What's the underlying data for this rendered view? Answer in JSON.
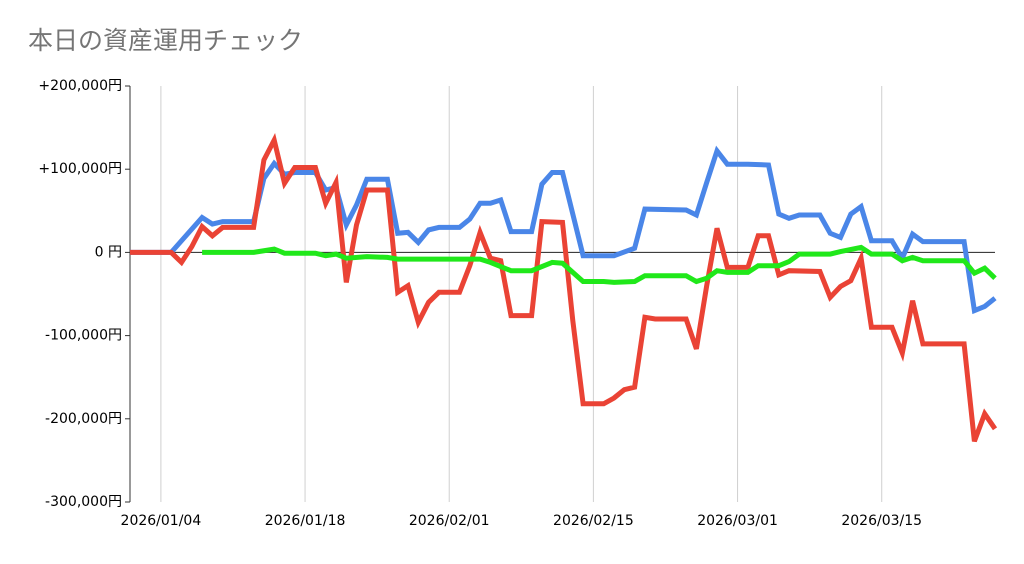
{
  "chart_data": {
    "type": "line",
    "title": "本日の資産運用チェック",
    "xlim": [
      "2026/01/01",
      "2026/03/26"
    ],
    "xticks": [
      "2026/01/04",
      "2026/01/18",
      "2026/02/01",
      "2026/02/15",
      "2026/03/01",
      "2026/03/15"
    ],
    "ylim": [
      -300000,
      200000
    ],
    "yticks": [
      {
        "value": 200000,
        "label": "+200,000円"
      },
      {
        "value": 100000,
        "label": "+100,000円"
      },
      {
        "value": 0,
        "label": "0 円"
      },
      {
        "value": -100000,
        "label": "-100,000円"
      },
      {
        "value": -200000,
        "label": "-200,000円"
      },
      {
        "value": -300000,
        "label": "-300,000円"
      }
    ],
    "grid": "x",
    "series": [
      {
        "color": "#4a86e8",
        "x": [
          "2026/01/01",
          "2026/01/05",
          "2026/01/08",
          "2026/01/09",
          "2026/01/10",
          "2026/01/13",
          "2026/01/14",
          "2026/01/15",
          "2026/01/16",
          "2026/01/17",
          "2026/01/19",
          "2026/01/20",
          "2026/01/21",
          "2026/01/22",
          "2026/01/23",
          "2026/01/24",
          "2026/01/26",
          "2026/01/27",
          "2026/01/28",
          "2026/01/29",
          "2026/01/30",
          "2026/01/31",
          "2026/02/02",
          "2026/02/03",
          "2026/02/04",
          "2026/02/05",
          "2026/02/06",
          "2026/02/07",
          "2026/02/09",
          "2026/02/10",
          "2026/02/11",
          "2026/02/12",
          "2026/02/14",
          "2026/02/17",
          "2026/02/19",
          "2026/02/20",
          "2026/02/24",
          "2026/02/25",
          "2026/02/26",
          "2026/02/27",
          "2026/02/28",
          "2026/03/02",
          "2026/03/04",
          "2026/03/05",
          "2026/03/06",
          "2026/03/07",
          "2026/03/09",
          "2026/03/10",
          "2026/03/11",
          "2026/03/12",
          "2026/03/13",
          "2026/03/14",
          "2026/03/16",
          "2026/03/17",
          "2026/03/18",
          "2026/03/19",
          "2026/03/23",
          "2026/03/24",
          "2026/03/25",
          "2026/03/26"
        ],
        "values": [
          0,
          0,
          42000,
          34000,
          37000,
          37000,
          89000,
          107000,
          94000,
          96000,
          96000,
          75000,
          78000,
          33000,
          57000,
          88000,
          88000,
          23000,
          24000,
          12000,
          27000,
          30000,
          30000,
          40000,
          59000,
          59000,
          63000,
          25000,
          25000,
          82000,
          96000,
          96000,
          -4000,
          -4000,
          5000,
          52000,
          51000,
          45000,
          84000,
          122000,
          106000,
          106000,
          105000,
          46000,
          41000,
          45000,
          45000,
          23000,
          18000,
          46000,
          55000,
          14000,
          14000,
          -7000,
          22000,
          13000,
          13000,
          -70000,
          -65000,
          -55000
        ]
      },
      {
        "color": "#ea4335",
        "x": [
          "2026/01/01",
          "2026/01/05",
          "2026/01/06",
          "2026/01/07",
          "2026/01/08",
          "2026/01/09",
          "2026/01/10",
          "2026/01/13",
          "2026/01/14",
          "2026/01/15",
          "2026/01/16",
          "2026/01/17",
          "2026/01/19",
          "2026/01/20",
          "2026/01/21",
          "2026/01/22",
          "2026/01/23",
          "2026/01/24",
          "2026/01/26",
          "2026/01/27",
          "2026/01/28",
          "2026/01/29",
          "2026/01/30",
          "2026/01/31",
          "2026/02/02",
          "2026/02/03",
          "2026/02/04",
          "2026/02/05",
          "2026/02/06",
          "2026/02/07",
          "2026/02/09",
          "2026/02/10",
          "2026/02/12",
          "2026/02/13",
          "2026/02/14",
          "2026/02/16",
          "2026/02/17",
          "2026/02/18",
          "2026/02/19",
          "2026/02/20",
          "2026/02/21",
          "2026/02/24",
          "2026/02/25",
          "2026/02/26",
          "2026/02/27",
          "2026/02/28",
          "2026/03/02",
          "2026/03/03",
          "2026/03/04",
          "2026/03/05",
          "2026/03/06",
          "2026/03/09",
          "2026/03/10",
          "2026/03/11",
          "2026/03/12",
          "2026/03/13",
          "2026/03/14",
          "2026/03/16",
          "2026/03/17",
          "2026/03/18",
          "2026/03/19",
          "2026/03/23",
          "2026/03/24",
          "2026/03/25",
          "2026/03/26"
        ],
        "values": [
          0,
          0,
          -12000,
          7000,
          31000,
          20000,
          30000,
          30000,
          111000,
          135000,
          83000,
          102000,
          102000,
          59000,
          84000,
          -36000,
          33000,
          75000,
          75000,
          -48000,
          -40000,
          -84000,
          -60000,
          -48000,
          -48000,
          -16000,
          24000,
          -7000,
          -10000,
          -76000,
          -76000,
          37000,
          36000,
          -82000,
          -182000,
          -182000,
          -175000,
          -165000,
          -162000,
          -78000,
          -80000,
          -80000,
          -116000,
          -40000,
          29000,
          -18000,
          -18000,
          20000,
          20000,
          -27000,
          -22000,
          -23000,
          -54000,
          -41000,
          -34000,
          -7000,
          -90000,
          -90000,
          -121000,
          -58000,
          -110000,
          -110000,
          -227000,
          -194000,
          -212000
        ]
      },
      {
        "color": "#20e81a",
        "x": [
          "2026/01/08",
          "2026/01/09",
          "2026/01/13",
          "2026/01/15",
          "2026/01/16",
          "2026/01/19",
          "2026/01/20",
          "2026/01/21",
          "2026/01/22",
          "2026/01/24",
          "2026/01/26",
          "2026/01/27",
          "2026/01/31",
          "2026/02/04",
          "2026/02/05",
          "2026/02/07",
          "2026/02/09",
          "2026/02/11",
          "2026/02/12",
          "2026/02/14",
          "2026/02/16",
          "2026/02/17",
          "2026/02/19",
          "2026/02/20",
          "2026/02/24",
          "2026/02/25",
          "2026/02/26",
          "2026/02/27",
          "2026/02/28",
          "2026/03/02",
          "2026/03/03",
          "2026/03/05",
          "2026/03/06",
          "2026/03/07",
          "2026/03/10",
          "2026/03/11",
          "2026/03/13",
          "2026/03/14",
          "2026/03/16",
          "2026/03/17",
          "2026/03/18",
          "2026/03/19",
          "2026/03/23",
          "2026/03/24",
          "2026/03/25",
          "2026/03/26"
        ],
        "values": [
          0,
          0,
          0,
          4000,
          -1000,
          -1000,
          -4000,
          -2000,
          -7000,
          -5000,
          -6000,
          -8000,
          -8000,
          -8000,
          -12000,
          -22000,
          -22000,
          -12000,
          -13000,
          -35000,
          -35000,
          -36000,
          -35000,
          -28000,
          -28000,
          -35000,
          -31000,
          -22000,
          -24000,
          -24000,
          -16000,
          -16000,
          -11000,
          -2000,
          -2000,
          1000,
          6000,
          -2000,
          -2000,
          -10000,
          -6000,
          -10000,
          -10000,
          -25000,
          -19000,
          -31000
        ]
      }
    ]
  }
}
